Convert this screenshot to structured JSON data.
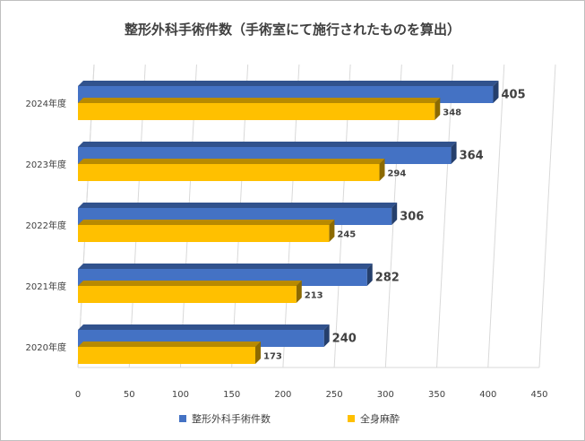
{
  "chart_data": {
    "type": "bar",
    "orientation": "horizontal",
    "style": "3d",
    "title": "整形外科手術件数（手術室にて施行されたものを算出）",
    "categories": [
      "2024年度",
      "2023年度",
      "2022年度",
      "2021年度",
      "2020年度"
    ],
    "series": [
      {
        "name": "整形外科手術件数",
        "color": "#4472c4",
        "values": [
          405,
          364,
          306,
          282,
          240
        ]
      },
      {
        "name": "全身麻酔",
        "color": "#ffc000",
        "values": [
          348,
          294,
          245,
          213,
          173
        ]
      }
    ],
    "xlim": [
      0,
      450
    ],
    "xticks": [
      "0",
      "50",
      "100",
      "150",
      "200",
      "250",
      "300",
      "350",
      "400",
      "450"
    ],
    "grid": true,
    "legend": "bottom"
  }
}
